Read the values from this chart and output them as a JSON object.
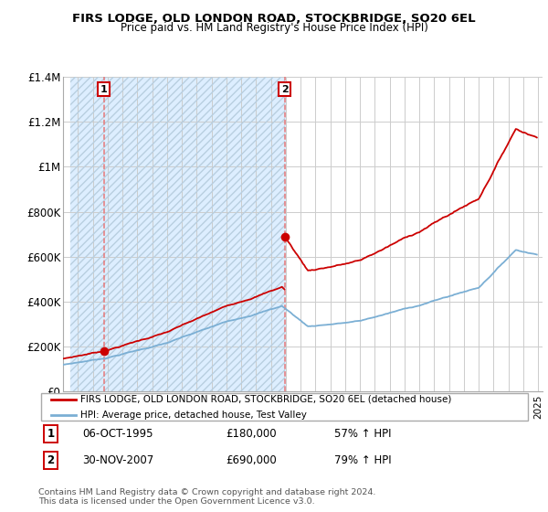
{
  "title1": "FIRS LODGE, OLD LONDON ROAD, STOCKBRIDGE, SO20 6EL",
  "title2": "Price paid vs. HM Land Registry's House Price Index (HPI)",
  "red_label": "FIRS LODGE, OLD LONDON ROAD, STOCKBRIDGE, SO20 6EL (detached house)",
  "blue_label": "HPI: Average price, detached house, Test Valley",
  "purchase1_date": "06-OCT-1995",
  "purchase1_price": 180000,
  "purchase1_hpi": "57% ↑ HPI",
  "purchase2_date": "30-NOV-2007",
  "purchase2_price": 690000,
  "purchase2_hpi": "79% ↑ HPI",
  "footer": "Contains HM Land Registry data © Crown copyright and database right 2024.\nThis data is licensed under the Open Government Licence v3.0.",
  "ylim": [
    0,
    1400000
  ],
  "yticks": [
    0,
    200000,
    400000,
    600000,
    800000,
    1000000,
    1200000,
    1400000
  ],
  "ytick_labels": [
    "£0",
    "£200K",
    "£400K",
    "£600K",
    "£800K",
    "£1M",
    "£1.2M",
    "£1.4M"
  ],
  "red_color": "#cc0000",
  "blue_color": "#7bafd4",
  "vline_color": "#e87878",
  "hatch_fill_color": "#ddeeff",
  "purchase1_x": 1995.75,
  "purchase2_x": 2007.92,
  "xmin": 1993.5,
  "xmax": 2025.3
}
